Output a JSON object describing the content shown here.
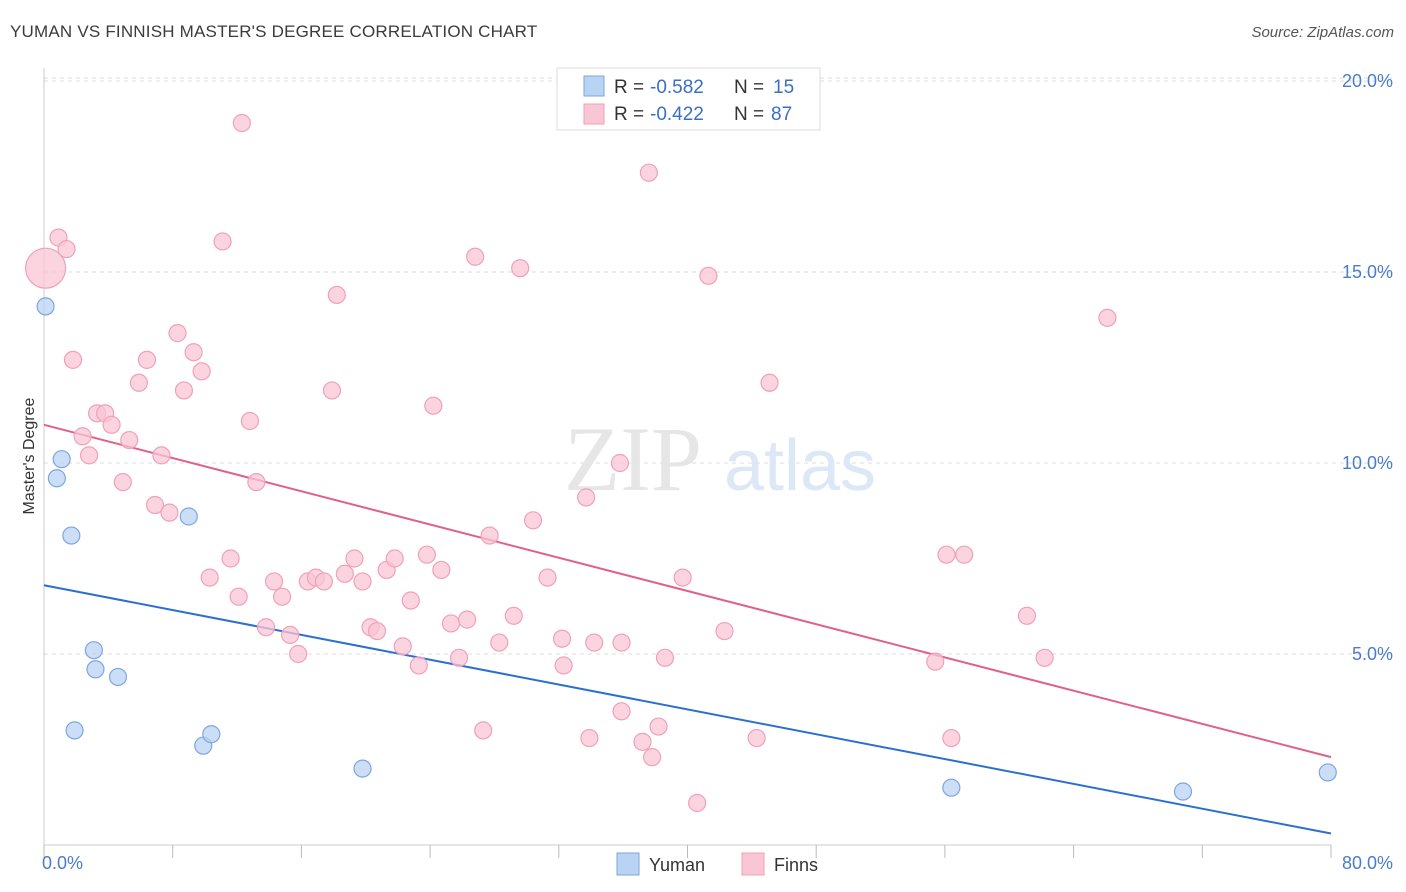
{
  "title": "YUMAN VS FINNISH MASTER'S DEGREE CORRELATION CHART",
  "source": "Source: ZipAtlas.com",
  "watermark": {
    "part1": "ZIP",
    "part2": "atlas"
  },
  "colors": {
    "yuman_fill": "#b9d3f3",
    "yuman_stroke": "#7ea6e0",
    "yuman_line": "#2b6fd0",
    "finns_fill": "#f9c6d5",
    "finns_stroke": "#f0a0ba",
    "finns_line": "#e0608a",
    "tick": "#4a7cc9",
    "grid": "#dddddd"
  },
  "legend": {
    "rows": [
      {
        "r_label": "R =",
        "r_value": "-0.582",
        "n_label": "N =",
        "n_value": "15"
      },
      {
        "r_label": "R =",
        "r_value": "-0.422",
        "n_label": "N =",
        "n_value": "87"
      }
    ]
  },
  "chart_data": {
    "type": "scatter",
    "title": "YUMAN VS FINNISH MASTER'S DEGREE CORRELATION CHART",
    "xlabel": "",
    "ylabel": "Master's Degree",
    "xlim": [
      0,
      80
    ],
    "ylim": [
      0,
      20.5
    ],
    "x_tick_labels": [
      "0.0%",
      "80.0%"
    ],
    "y_ticks": [
      5,
      10,
      15,
      20
    ],
    "y_tick_labels": [
      "5.0%",
      "10.0%",
      "15.0%",
      "20.0%"
    ],
    "grid": true,
    "legend_position": "top-center",
    "series": [
      {
        "name": "Yuman",
        "points": [
          [
            0.1,
            14.1
          ],
          [
            0.8,
            9.6
          ],
          [
            1.1,
            10.1
          ],
          [
            1.7,
            8.1
          ],
          [
            1.9,
            3.0
          ],
          [
            3.1,
            5.1
          ],
          [
            3.2,
            4.6
          ],
          [
            4.6,
            4.4
          ],
          [
            9.0,
            8.6
          ],
          [
            9.9,
            2.6
          ],
          [
            10.4,
            2.9
          ],
          [
            19.8,
            2.0
          ],
          [
            56.4,
            1.5
          ],
          [
            70.8,
            1.4
          ],
          [
            79.8,
            1.9
          ]
        ],
        "trend": [
          [
            0,
            6.8
          ],
          [
            80,
            0.3
          ]
        ]
      },
      {
        "name": "Finns",
        "points": [
          [
            0.1,
            15.1
          ],
          [
            0.9,
            15.9
          ],
          [
            1.4,
            15.6
          ],
          [
            1.8,
            12.7
          ],
          [
            2.4,
            10.7
          ],
          [
            2.8,
            10.2
          ],
          [
            3.3,
            11.3
          ],
          [
            3.8,
            11.3
          ],
          [
            4.2,
            11.0
          ],
          [
            4.9,
            9.5
          ],
          [
            5.3,
            10.6
          ],
          [
            5.9,
            12.1
          ],
          [
            6.4,
            12.7
          ],
          [
            6.9,
            8.9
          ],
          [
            7.3,
            10.2
          ],
          [
            7.8,
            8.7
          ],
          [
            8.3,
            13.4
          ],
          [
            8.7,
            11.9
          ],
          [
            9.3,
            12.9
          ],
          [
            9.8,
            12.4
          ],
          [
            10.3,
            7.0
          ],
          [
            11.1,
            15.8
          ],
          [
            11.6,
            7.5
          ],
          [
            12.1,
            6.5
          ],
          [
            12.3,
            18.9
          ],
          [
            12.8,
            11.1
          ],
          [
            13.2,
            9.5
          ],
          [
            13.8,
            5.7
          ],
          [
            14.3,
            6.9
          ],
          [
            14.8,
            6.5
          ],
          [
            15.3,
            5.5
          ],
          [
            15.8,
            5.0
          ],
          [
            16.4,
            6.9
          ],
          [
            16.9,
            7.0
          ],
          [
            17.4,
            6.9
          ],
          [
            17.9,
            11.9
          ],
          [
            18.2,
            14.4
          ],
          [
            18.7,
            7.1
          ],
          [
            19.3,
            7.5
          ],
          [
            19.8,
            6.9
          ],
          [
            20.3,
            5.7
          ],
          [
            20.7,
            5.6
          ],
          [
            21.3,
            7.2
          ],
          [
            21.8,
            7.5
          ],
          [
            22.3,
            5.2
          ],
          [
            22.8,
            6.4
          ],
          [
            23.3,
            4.7
          ],
          [
            23.8,
            7.6
          ],
          [
            24.2,
            11.5
          ],
          [
            24.7,
            7.2
          ],
          [
            25.3,
            5.8
          ],
          [
            25.8,
            4.9
          ],
          [
            26.3,
            5.9
          ],
          [
            26.8,
            15.4
          ],
          [
            27.3,
            3.0
          ],
          [
            27.7,
            8.1
          ],
          [
            28.3,
            5.3
          ],
          [
            29.2,
            6.0
          ],
          [
            29.6,
            15.1
          ],
          [
            30.4,
            8.5
          ],
          [
            31.3,
            7.0
          ],
          [
            32.2,
            5.4
          ],
          [
            32.3,
            4.7
          ],
          [
            33.7,
            9.1
          ],
          [
            33.9,
            2.8
          ],
          [
            34.2,
            5.3
          ],
          [
            35.8,
            10.0
          ],
          [
            35.9,
            5.3
          ],
          [
            35.9,
            3.5
          ],
          [
            37.2,
            2.7
          ],
          [
            37.6,
            17.6
          ],
          [
            37.8,
            2.3
          ],
          [
            38.2,
            3.1
          ],
          [
            38.6,
            4.9
          ],
          [
            39.7,
            7.0
          ],
          [
            40.6,
            1.1
          ],
          [
            41.3,
            14.9
          ],
          [
            42.3,
            5.6
          ],
          [
            44.3,
            2.8
          ],
          [
            45.1,
            12.1
          ],
          [
            55.4,
            4.8
          ],
          [
            56.1,
            7.6
          ],
          [
            56.4,
            2.8
          ],
          [
            57.2,
            7.6
          ],
          [
            61.1,
            6.0
          ],
          [
            62.2,
            4.9
          ],
          [
            66.1,
            13.8
          ]
        ],
        "trend": [
          [
            0,
            11.0
          ],
          [
            80,
            2.3
          ]
        ]
      }
    ]
  },
  "bottom_legend": {
    "items": [
      "Yuman",
      "Finns"
    ]
  }
}
